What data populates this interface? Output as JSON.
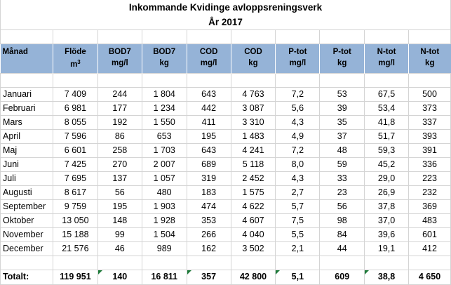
{
  "title": "Inkommande Kvidinge avloppsreningsverk",
  "subtitle": "År 2017",
  "headers": [
    {
      "line1": "Månad",
      "line2": ""
    },
    {
      "line1": "Flöde",
      "line2": "m",
      "sup": "3"
    },
    {
      "line1": "BOD7",
      "line2": "mg/l"
    },
    {
      "line1": "BOD7",
      "line2": "kg"
    },
    {
      "line1": "COD",
      "line2": "mg/l"
    },
    {
      "line1": "COD",
      "line2": "kg"
    },
    {
      "line1": "P-tot",
      "line2": "mg/l"
    },
    {
      "line1": "P-tot",
      "line2": "kg"
    },
    {
      "line1": "N-tot",
      "line2": "mg/l"
    },
    {
      "line1": "N-tot",
      "line2": "kg"
    }
  ],
  "rows": [
    [
      "Januari",
      "7 409",
      "244",
      "1 804",
      "643",
      "4 763",
      "7,2",
      "53",
      "67,5",
      "500"
    ],
    [
      "Februari",
      "6 981",
      "177",
      "1 234",
      "442",
      "3 087",
      "5,6",
      "39",
      "53,4",
      "373"
    ],
    [
      "Mars",
      "8 055",
      "192",
      "1 550",
      "411",
      "3 310",
      "4,3",
      "35",
      "41,8",
      "337"
    ],
    [
      "April",
      "7 596",
      "86",
      "653",
      "195",
      "1 483",
      "4,9",
      "37",
      "51,7",
      "393"
    ],
    [
      "Maj",
      "6 601",
      "258",
      "1 703",
      "643",
      "4 241",
      "7,2",
      "48",
      "59,3",
      "391"
    ],
    [
      "Juni",
      "7 425",
      "270",
      "2 007",
      "689",
      "5 118",
      "8,0",
      "59",
      "45,2",
      "336"
    ],
    [
      "Juli",
      "7 695",
      "137",
      "1 057",
      "319",
      "2 452",
      "4,3",
      "33",
      "29,0",
      "223"
    ],
    [
      "Augusti",
      "8 617",
      "56",
      "480",
      "183",
      "1 575",
      "2,7",
      "23",
      "26,9",
      "232"
    ],
    [
      "September",
      "9 759",
      "195",
      "1 903",
      "474",
      "4 622",
      "5,7",
      "56",
      "37,8",
      "369"
    ],
    [
      "Oktober",
      "13 050",
      "148",
      "1 928",
      "353",
      "4 607",
      "7,5",
      "98",
      "37,0",
      "483"
    ],
    [
      "November",
      "15 188",
      "99",
      "1 504",
      "266",
      "4 040",
      "5,5",
      "84",
      "39,6",
      "601"
    ],
    [
      "December",
      "21 576",
      "46",
      "989",
      "162",
      "3 502",
      "2,1",
      "44",
      "19,1",
      "412"
    ]
  ],
  "total": [
    "Totalt:",
    "119 951",
    "140",
    "16 811",
    "357",
    "42 800",
    "5,1",
    "609",
    "38,8",
    "4 650"
  ],
  "colors": {
    "header_bg": "#95b3d7",
    "grid": "#d4d4d4",
    "error_marker": "#1e7b3a"
  }
}
